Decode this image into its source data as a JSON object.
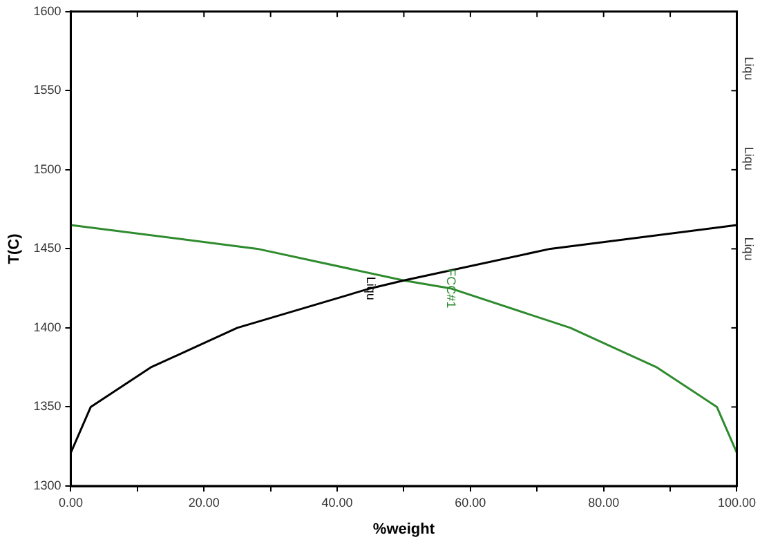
{
  "chart_data": {
    "type": "line",
    "xlabel": "%weight",
    "ylabel": "T(C)",
    "xlim": [
      0,
      100
    ],
    "ylim": [
      1300,
      1600
    ],
    "xticks": [
      {
        "value": 0,
        "label": "0.00"
      },
      {
        "value": 10,
        "label": null
      },
      {
        "value": 20,
        "label": "20.00"
      },
      {
        "value": 30,
        "label": null
      },
      {
        "value": 40,
        "label": "40.00"
      },
      {
        "value": 50,
        "label": null
      },
      {
        "value": 60,
        "label": "60.00"
      },
      {
        "value": 70,
        "label": null
      },
      {
        "value": 80,
        "label": "80.00"
      },
      {
        "value": 90,
        "label": null
      },
      {
        "value": 100,
        "label": "100.00"
      }
    ],
    "yticks": [
      1300,
      1350,
      1400,
      1450,
      1500,
      1550,
      1600
    ],
    "grid": false,
    "legend": false,
    "marker": "none",
    "line_style": "solid",
    "series": [
      {
        "color": "#000000",
        "x": [
          0,
          3,
          12,
          25,
          45,
          50,
          72,
          100
        ],
        "values": [
          1321,
          1350,
          1375,
          1400,
          1425,
          1430,
          1450,
          1465
        ]
      },
      {
        "color": "#2e8b2e",
        "x": [
          0,
          28,
          50,
          57,
          75,
          88,
          97,
          100
        ],
        "values": [
          1465,
          1450,
          1430,
          1425,
          1400,
          1375,
          1350,
          1321
        ]
      }
    ],
    "annotations": [
      {
        "text": "Liqu",
        "x": 45,
        "y": 1425
      },
      {
        "text": "FCC#1",
        "x": 57,
        "y": 1425
      },
      "Liqu",
      "Liqu",
      "Liqu"
    ]
  }
}
